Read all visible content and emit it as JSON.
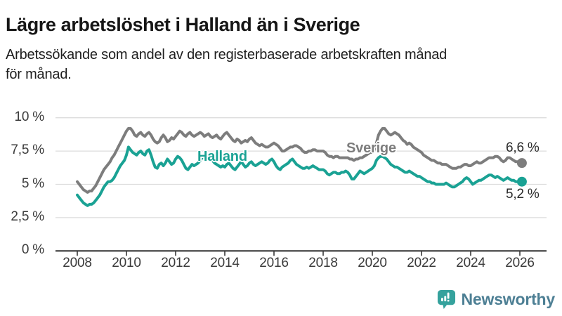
{
  "branding": {
    "logo_text": "Newsworthy"
  },
  "colors": {
    "halland_line": "#1aa294",
    "sverige_line": "#7d7d7d",
    "gridline": "#dcdcdc",
    "axis": "#383838",
    "logo_teal": "#35a29d",
    "logo_text_color": "#4d7f94"
  },
  "chart_data": {
    "type": "line",
    "title": "Lägre arbetslöshet i Halland än i Sverige",
    "subtitle_lines": [
      "Arbetssökande som andel av den registerbaserade arbetskraften månad",
      "för månad."
    ],
    "xlabel": "",
    "ylabel": "",
    "ylim": [
      0,
      10
    ],
    "xlim_years": [
      2008,
      2026.25
    ],
    "grid": true,
    "legend_position": "inline-series-labels",
    "x_start_year": 2008,
    "x_step_months": 1,
    "y_ticks": [
      {
        "label": "10 %",
        "value": 10
      },
      {
        "label": "7,5 %",
        "value": 7.5
      },
      {
        "label": "5 %",
        "value": 5
      },
      {
        "label": "2,5 %",
        "value": 2.5
      },
      {
        "label": "0 %",
        "value": 0
      }
    ],
    "x_ticks": [
      {
        "label": "2008",
        "value": 2008
      },
      {
        "label": "2010",
        "value": 2010
      },
      {
        "label": "2012",
        "value": 2012
      },
      {
        "label": "2014",
        "value": 2014
      },
      {
        "label": "2016",
        "value": 2016
      },
      {
        "label": "2018",
        "value": 2018
      },
      {
        "label": "2020",
        "value": 2020
      },
      {
        "label": "2022",
        "value": 2022
      },
      {
        "label": "2024",
        "value": 2024
      },
      {
        "label": "2026",
        "value": 2026
      }
    ],
    "series": [
      {
        "name": "Sverige",
        "color": "#7d7d7d",
        "end_label": "6,6 %",
        "end_value": 6.6,
        "values": [
          5.2,
          5.0,
          4.8,
          4.6,
          4.5,
          4.4,
          4.5,
          4.5,
          4.7,
          4.9,
          5.2,
          5.5,
          5.8,
          6.1,
          6.3,
          6.5,
          6.7,
          7.0,
          7.2,
          7.5,
          7.8,
          8.1,
          8.4,
          8.7,
          9.0,
          9.2,
          9.2,
          9.0,
          8.7,
          8.6,
          8.8,
          8.9,
          8.7,
          8.6,
          8.8,
          8.9,
          8.7,
          8.4,
          8.2,
          8.1,
          8.2,
          8.5,
          8.7,
          8.5,
          8.2,
          8.3,
          8.5,
          8.4,
          8.6,
          8.8,
          9.0,
          8.9,
          8.7,
          8.6,
          8.8,
          8.9,
          8.7,
          8.6,
          8.7,
          8.8,
          8.9,
          8.8,
          8.6,
          8.7,
          8.8,
          8.6,
          8.5,
          8.6,
          8.7,
          8.5,
          8.4,
          8.6,
          8.8,
          8.9,
          8.7,
          8.5,
          8.3,
          8.2,
          8.4,
          8.3,
          8.1,
          8.2,
          8.3,
          8.2,
          8.4,
          8.5,
          8.3,
          8.1,
          8.0,
          7.9,
          8.0,
          7.9,
          7.8,
          7.8,
          7.9,
          8.0,
          8.1,
          8.0,
          7.9,
          7.7,
          7.5,
          7.5,
          7.6,
          7.7,
          7.8,
          7.8,
          7.9,
          7.9,
          7.8,
          7.7,
          7.5,
          7.4,
          7.4,
          7.5,
          7.5,
          7.6,
          7.6,
          7.5,
          7.5,
          7.5,
          7.5,
          7.4,
          7.2,
          7.1,
          7.1,
          7.0,
          7.1,
          7.1,
          7.0,
          7.0,
          7.0,
          7.0,
          7.0,
          6.9,
          6.9,
          6.8,
          6.9,
          6.9,
          7.0,
          7.0,
          7.1,
          7.2,
          7.3,
          7.4,
          7.4,
          7.6,
          8.1,
          8.7,
          9.0,
          9.2,
          9.2,
          9.0,
          8.8,
          8.7,
          8.8,
          8.9,
          8.8,
          8.7,
          8.5,
          8.3,
          8.2,
          8.0,
          8.1,
          8.0,
          7.8,
          7.7,
          7.6,
          7.5,
          7.4,
          7.2,
          7.1,
          7.0,
          6.9,
          6.8,
          6.8,
          6.7,
          6.6,
          6.6,
          6.5,
          6.5,
          6.5,
          6.4,
          6.3,
          6.2,
          6.2,
          6.2,
          6.3,
          6.3,
          6.4,
          6.5,
          6.5,
          6.4,
          6.4,
          6.5,
          6.6,
          6.7,
          6.6,
          6.6,
          6.7,
          6.8,
          6.9,
          7.0,
          7.0,
          7.0,
          7.1,
          7.1,
          7.0,
          6.8,
          6.7,
          6.8,
          7.0,
          7.0,
          6.9,
          6.8,
          6.7,
          6.7,
          6.6,
          6.6
        ]
      },
      {
        "name": "Halland",
        "color": "#1aa294",
        "end_label": "5,2 %",
        "end_value": 5.2,
        "values": [
          4.2,
          4.0,
          3.8,
          3.6,
          3.5,
          3.4,
          3.5,
          3.5,
          3.6,
          3.8,
          4.0,
          4.2,
          4.5,
          4.8,
          5.0,
          5.2,
          5.2,
          5.3,
          5.5,
          5.8,
          6.1,
          6.4,
          6.6,
          6.8,
          7.2,
          7.8,
          7.6,
          7.4,
          7.3,
          7.2,
          7.4,
          7.5,
          7.3,
          7.2,
          7.5,
          7.6,
          7.2,
          6.7,
          6.3,
          6.2,
          6.5,
          6.6,
          6.4,
          6.6,
          6.9,
          6.7,
          6.5,
          6.6,
          6.9,
          7.1,
          7.0,
          6.8,
          6.5,
          6.2,
          6.1,
          6.3,
          6.5,
          6.4,
          6.5,
          6.6,
          6.8,
          7.0,
          7.2,
          7.3,
          7.1,
          6.9,
          6.8,
          6.6,
          6.5,
          6.4,
          6.3,
          6.4,
          6.3,
          6.5,
          6.6,
          6.4,
          6.2,
          6.1,
          6.3,
          6.5,
          6.7,
          6.5,
          6.3,
          6.4,
          6.6,
          6.7,
          6.5,
          6.4,
          6.5,
          6.6,
          6.7,
          6.6,
          6.5,
          6.6,
          6.8,
          6.9,
          6.7,
          6.4,
          6.2,
          6.1,
          6.3,
          6.4,
          6.5,
          6.6,
          6.8,
          6.9,
          6.7,
          6.5,
          6.4,
          6.3,
          6.2,
          6.2,
          6.3,
          6.2,
          6.3,
          6.4,
          6.3,
          6.2,
          6.1,
          6.1,
          6.1,
          6.0,
          5.8,
          5.7,
          5.8,
          5.9,
          5.9,
          5.8,
          5.8,
          5.9,
          5.9,
          6.0,
          5.9,
          5.7,
          5.4,
          5.4,
          5.6,
          5.8,
          6.0,
          5.9,
          5.8,
          5.9,
          6.0,
          6.1,
          6.2,
          6.4,
          6.8,
          7.0,
          7.1,
          7.1,
          7.0,
          6.9,
          6.7,
          6.5,
          6.4,
          6.3,
          6.3,
          6.2,
          6.1,
          6.0,
          5.9,
          5.9,
          6.0,
          5.9,
          5.8,
          5.7,
          5.6,
          5.6,
          5.5,
          5.4,
          5.3,
          5.2,
          5.2,
          5.1,
          5.1,
          5.0,
          5.0,
          5.0,
          5.0,
          5.0,
          5.1,
          5.0,
          4.9,
          4.8,
          4.8,
          4.9,
          5.0,
          5.1,
          5.2,
          5.4,
          5.5,
          5.4,
          5.2,
          5.0,
          5.1,
          5.2,
          5.3,
          5.3,
          5.4,
          5.5,
          5.6,
          5.7,
          5.7,
          5.6,
          5.5,
          5.6,
          5.5,
          5.4,
          5.3,
          5.4,
          5.5,
          5.4,
          5.3,
          5.3,
          5.2,
          5.2,
          5.2,
          5.2
        ]
      }
    ]
  }
}
